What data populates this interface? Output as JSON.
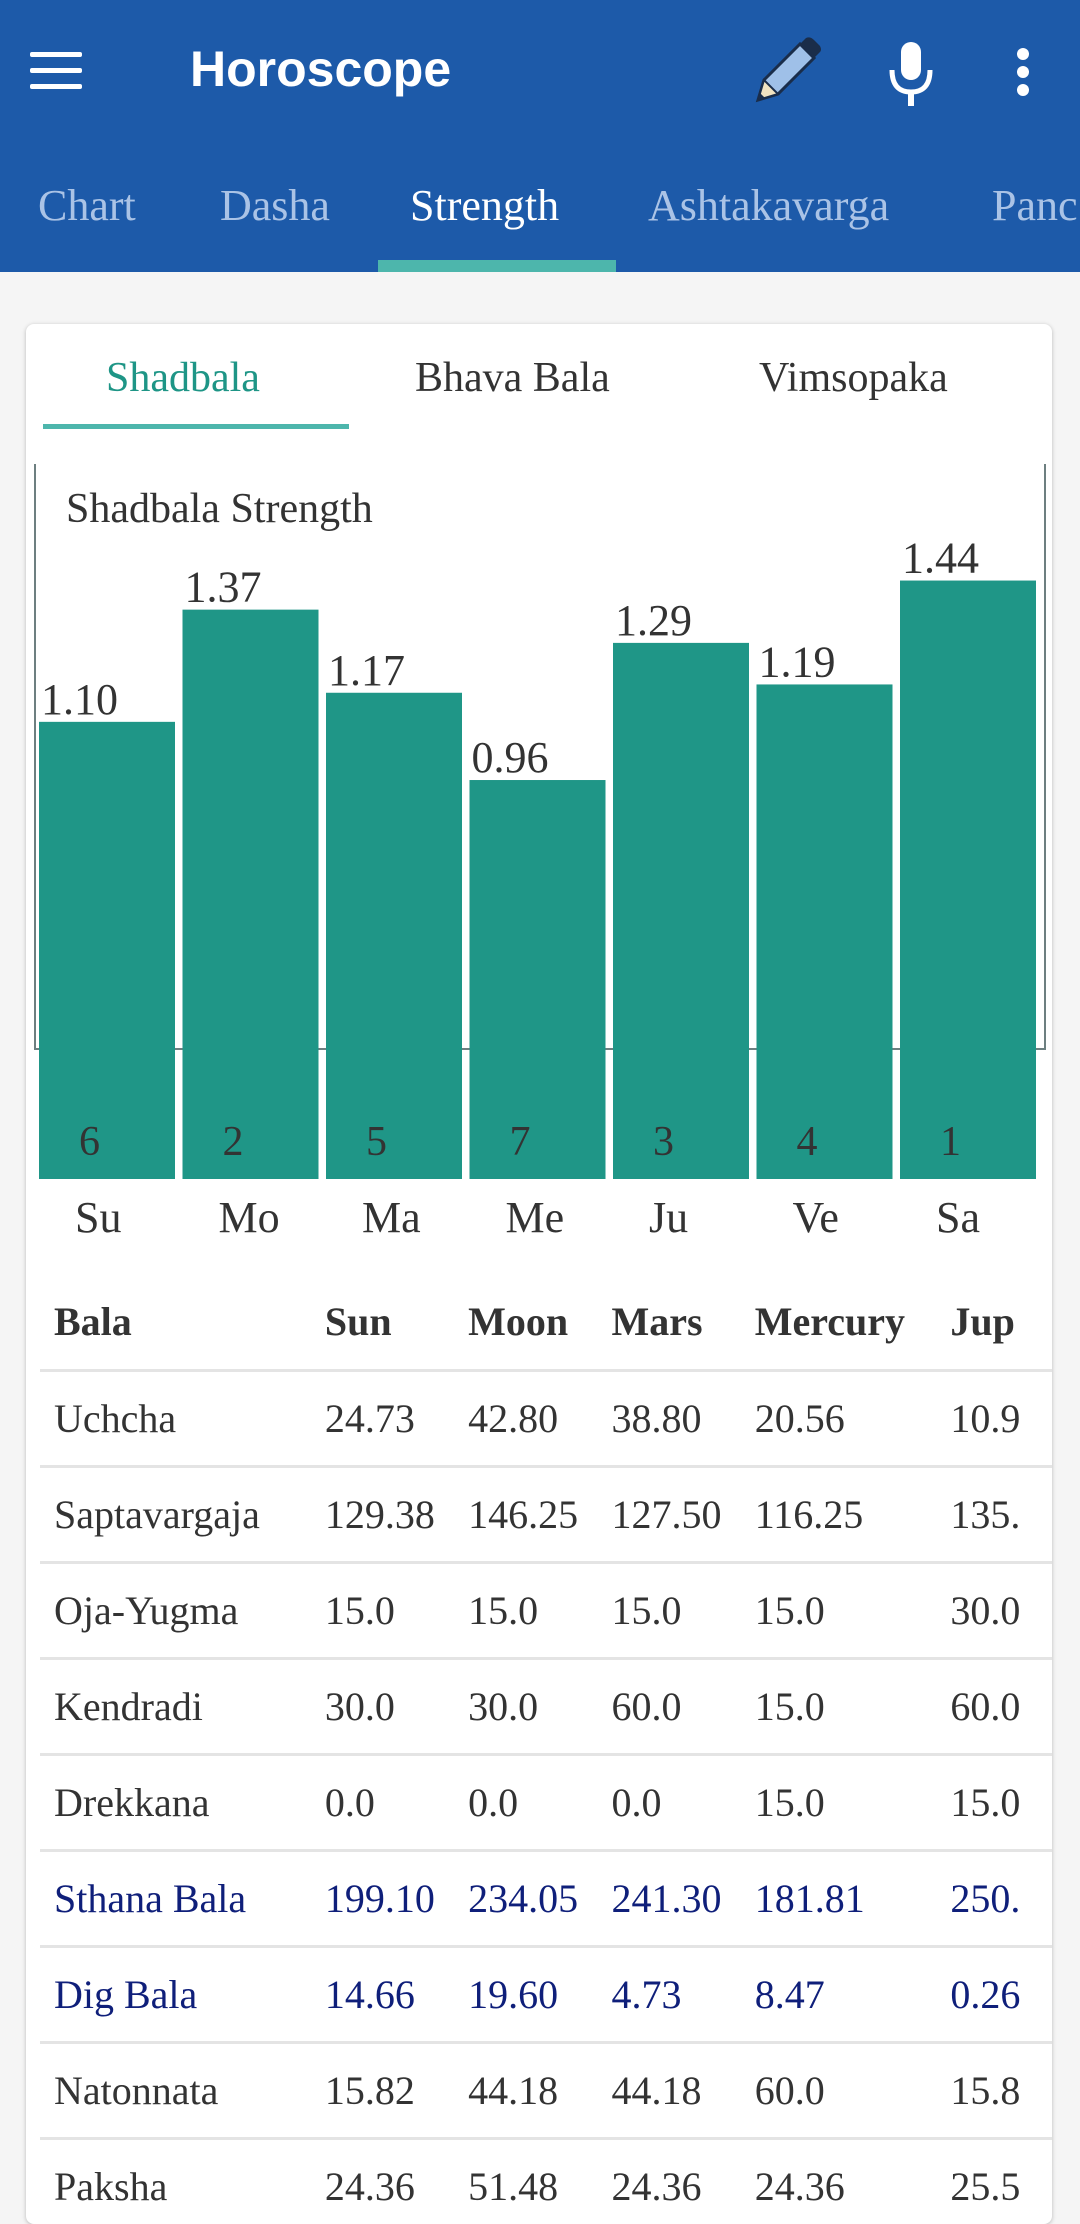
{
  "header": {
    "title": "Horoscope",
    "icons": [
      "menu-icon",
      "pencil-icon",
      "microphone-icon",
      "more-vert-icon"
    ]
  },
  "tabs": [
    {
      "label": "Chart",
      "active": false
    },
    {
      "label": "Dasha",
      "active": false
    },
    {
      "label": "Strength",
      "active": true
    },
    {
      "label": "Ashtakavarga",
      "active": false
    },
    {
      "label": "Panc",
      "active": false
    }
  ],
  "subtabs": [
    {
      "label": "Shadbala",
      "active": true
    },
    {
      "label": "Bhava Bala",
      "active": false
    },
    {
      "label": "Vimsopaka",
      "active": false
    }
  ],
  "chart_data": {
    "type": "bar",
    "title": "Shadbala Strength",
    "categories": [
      "Su",
      "Mo",
      "Ma",
      "Me",
      "Ju",
      "Ve",
      "Sa"
    ],
    "values": [
      1.1,
      1.37,
      1.17,
      0.96,
      1.29,
      1.19,
      1.44
    ],
    "value_labels": [
      "1.10",
      "1.37",
      "1.17",
      "0.96",
      "1.29",
      "1.19",
      "1.44"
    ],
    "ranks": [
      "6",
      "2",
      "5",
      "7",
      "3",
      "4",
      "1"
    ],
    "bar_color": "#1f9687",
    "ylim": [
      0,
      1.6
    ],
    "grid": false,
    "legend": "none"
  },
  "table": {
    "headers": [
      "Bala",
      "Sun",
      "Moon",
      "Mars",
      "Mercury",
      "Jup"
    ],
    "rows": [
      {
        "cells": [
          "Uchcha",
          "24.73",
          "42.80",
          "38.80",
          "20.56",
          "10.9"
        ],
        "total": false
      },
      {
        "cells": [
          "Saptavargaja",
          "129.38",
          "146.25",
          "127.50",
          "116.25",
          "135."
        ],
        "total": false
      },
      {
        "cells": [
          "Oja-Yugma",
          "15.0",
          "15.0",
          "15.0",
          "15.0",
          "30.0"
        ],
        "total": false
      },
      {
        "cells": [
          "Kendradi",
          "30.0",
          "30.0",
          "60.0",
          "15.0",
          "60.0"
        ],
        "total": false
      },
      {
        "cells": [
          "Drekkana",
          "0.0",
          "0.0",
          "0.0",
          "15.0",
          "15.0"
        ],
        "total": false
      },
      {
        "cells": [
          "Sthana Bala",
          "199.10",
          "234.05",
          "241.30",
          "181.81",
          "250."
        ],
        "total": true
      },
      {
        "cells": [
          "Dig Bala",
          "14.66",
          "19.60",
          "4.73",
          "8.47",
          "0.26"
        ],
        "total": true
      },
      {
        "cells": [
          "Natonnata",
          "15.82",
          "44.18",
          "44.18",
          "60.0",
          "15.8"
        ],
        "total": false
      },
      {
        "cells": [
          "Paksha",
          "24.36",
          "51.48",
          "24.36",
          "24.36",
          "25.5"
        ],
        "total": false
      }
    ]
  },
  "colors": {
    "appbar": "#1d5aa9",
    "accent": "#4db6ac",
    "bar": "#1f9687",
    "total_text": "#0f1f7a"
  }
}
